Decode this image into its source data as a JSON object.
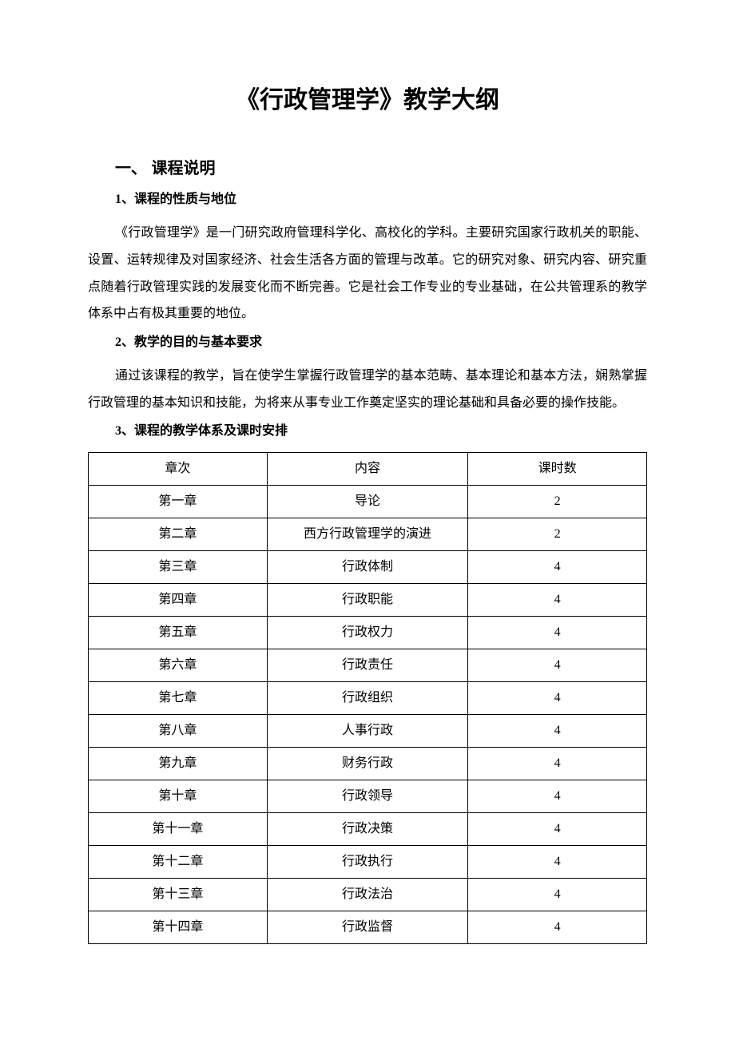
{
  "document": {
    "title": "《行政管理学》教学大纲",
    "background_color": "#ffffff",
    "text_color": "#000000",
    "title_fontsize": 30,
    "body_fontsize": 16,
    "heading_fontsize": 20
  },
  "sections": {
    "s1": {
      "heading": "一、 课程说明",
      "sub1": {
        "heading": "1、课程的性质与地位",
        "paragraph": "《行政管理学》是一门研究政府管理科学化、高校化的学科。主要研究国家行政机关的职能、设置、运转规律及对国家经济、社会生活各方面的管理与改革。它的研究对象、研究内容、研究重点随着行政管理实践的发展变化而不断完善。它是社会工作专业的专业基础，在公共管理系的教学体系中占有极其重要的地位。"
      },
      "sub2": {
        "heading": "2、教学的目的与基本要求",
        "paragraph": "通过该课程的教学，旨在使学生掌握行政管理学的基本范畴、基本理论和基本方法，娴熟掌握行政管理的基本知识和技能，为将来从事专业工作奠定坚实的理论基础和具备必要的操作技能。"
      },
      "sub3": {
        "heading": "3、课程的教学体系及课时安排"
      }
    }
  },
  "table": {
    "border_color": "#000000",
    "columns": [
      "章次",
      "内容",
      "课时数"
    ],
    "column_widths": [
      "32%",
      "36%",
      "32%"
    ],
    "rows": [
      {
        "chapter": "第一章",
        "content": "导论",
        "hours": "2"
      },
      {
        "chapter": "第二章",
        "content": "西方行政管理学的演进",
        "hours": "2"
      },
      {
        "chapter": "第三章",
        "content": "行政体制",
        "hours": "4"
      },
      {
        "chapter": "第四章",
        "content": "行政职能",
        "hours": "4"
      },
      {
        "chapter": "第五章",
        "content": "行政权力",
        "hours": "4"
      },
      {
        "chapter": "第六章",
        "content": "行政责任",
        "hours": "4"
      },
      {
        "chapter": "第七章",
        "content": "行政组织",
        "hours": "4"
      },
      {
        "chapter": "第八章",
        "content": "人事行政",
        "hours": "4"
      },
      {
        "chapter": "第九章",
        "content": "财务行政",
        "hours": "4"
      },
      {
        "chapter": "第十章",
        "content": "行政领导",
        "hours": "4"
      },
      {
        "chapter": "第十一章",
        "content": "行政决策",
        "hours": "4"
      },
      {
        "chapter": "第十二章",
        "content": "行政执行",
        "hours": "4"
      },
      {
        "chapter": "第十三章",
        "content": "行政法治",
        "hours": "4"
      },
      {
        "chapter": "第十四章",
        "content": "行政监督",
        "hours": "4"
      }
    ]
  }
}
